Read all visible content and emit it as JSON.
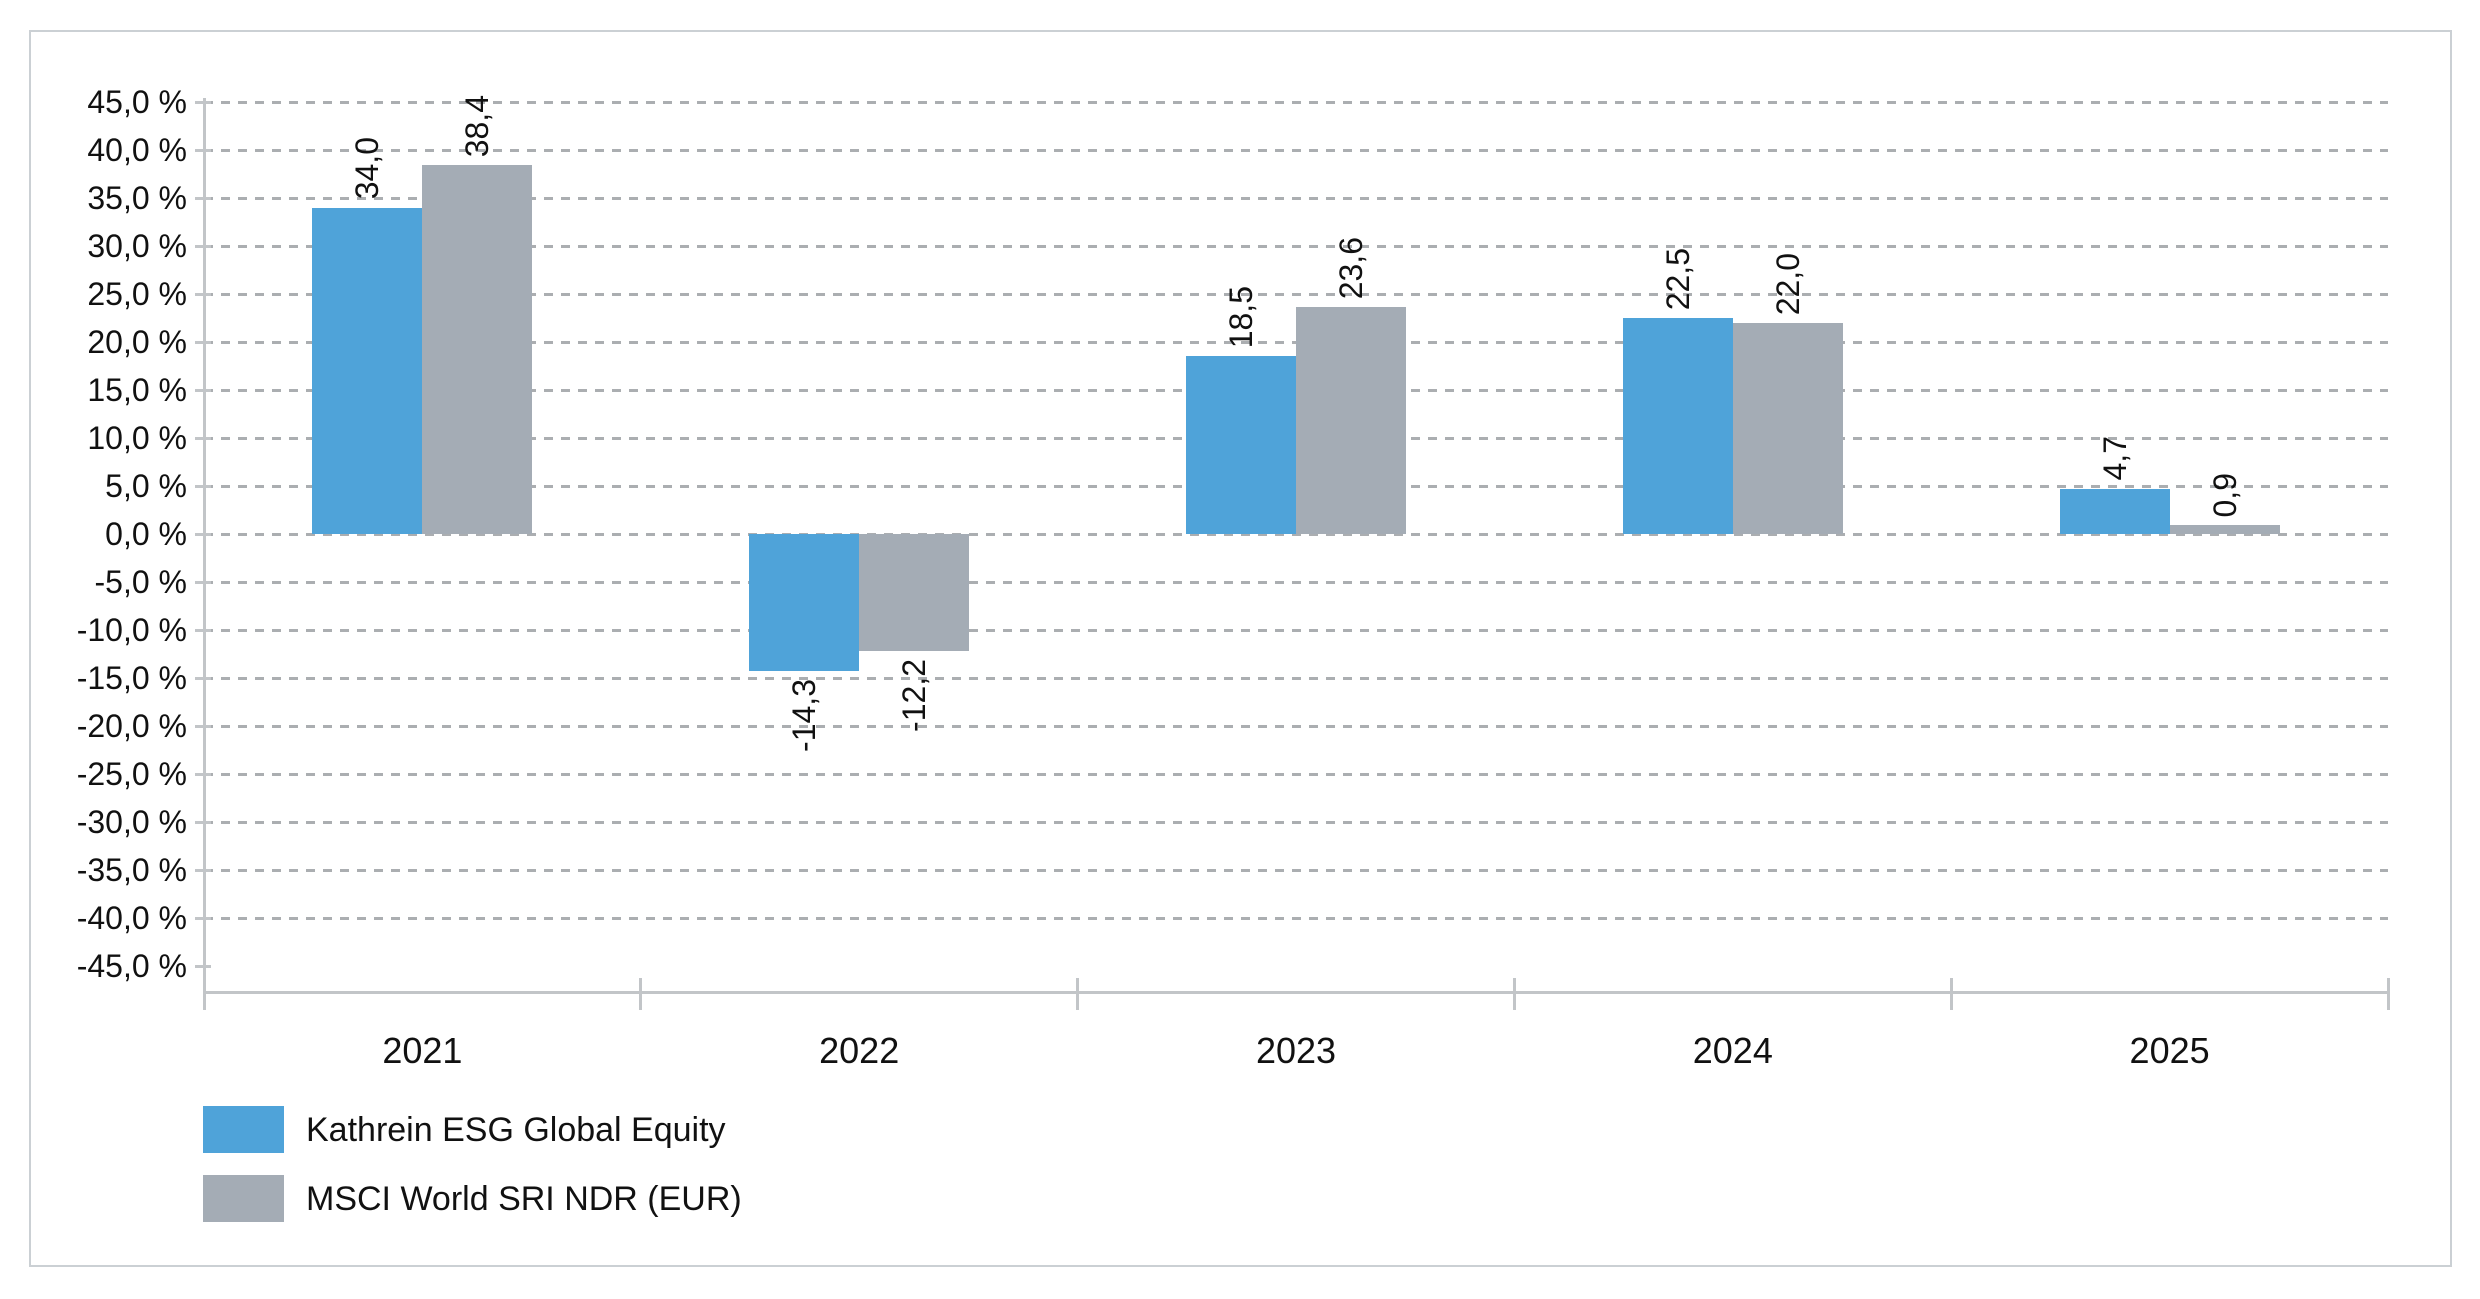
{
  "chart_data": {
    "type": "bar",
    "title": "",
    "categories": [
      "2021",
      "2022",
      "2023",
      "2024",
      "2025"
    ],
    "series": [
      {
        "name": "Kathrein ESG Global Equity",
        "color": "#4FA3D9",
        "values": [
          34.0,
          -14.3,
          18.5,
          22.5,
          4.7
        ],
        "value_labels": [
          "34,0",
          "-14,3",
          "18,5",
          "22,5",
          "4,7"
        ]
      },
      {
        "name": "MSCI World SRI NDR (EUR)",
        "color": "#A4ACB5",
        "values": [
          38.4,
          -12.2,
          23.6,
          22.0,
          0.9
        ],
        "value_labels": [
          "38,4",
          "-12,2",
          "23,6",
          "22,0",
          "0,9"
        ]
      }
    ],
    "y_axis": {
      "min": -45,
      "max": 45,
      "step": 5,
      "unit": "%",
      "tick_labels": [
        "45,0 %",
        "40,0 %",
        "35,0 %",
        "30,0 %",
        "25,0 %",
        "20,0 %",
        "15,0 %",
        "10,0 %",
        "5,0 %",
        "0,0 %",
        "-5,0 %",
        "-10,0 %",
        "-15,0 %",
        "-20,0 %",
        "-25,0 %",
        "-30,0 %",
        "-35,0 %",
        "-40,0 %",
        "-45,0 %"
      ]
    },
    "xlabel": "",
    "ylabel": "",
    "grid": {
      "horizontal": "dashed",
      "vertical": "none"
    },
    "legend_position": "bottom-left",
    "value_label_rotation": -90
  },
  "colors": {
    "grid": "#ABAEB1",
    "axis": "#C2C5C8",
    "frame_border": "#CBD0D4",
    "text": "#111111",
    "background": "#FFFFFF"
  }
}
